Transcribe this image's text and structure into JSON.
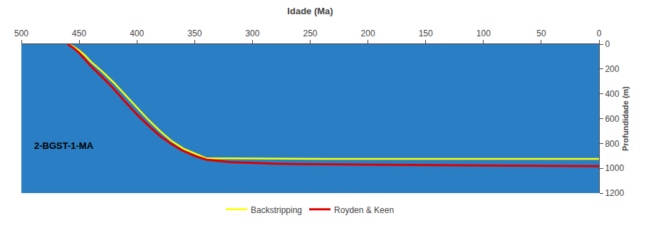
{
  "chart_data": {
    "type": "line",
    "xlabel": "Idade (Ma)",
    "ylabel": "Profundidade (m)",
    "xlim": [
      500,
      0
    ],
    "ylim": [
      1200,
      0
    ],
    "xticks": [
      500,
      450,
      400,
      350,
      300,
      250,
      200,
      150,
      100,
      50,
      0
    ],
    "yticks": [
      0,
      200,
      400,
      600,
      800,
      1000,
      1200
    ],
    "grid": false,
    "legend": "bottom",
    "series": [
      {
        "name": "Backstripping",
        "color": "#ffff00",
        "x": [
          460,
          455,
          450,
          445,
          440,
          430,
          420,
          410,
          400,
          390,
          380,
          370,
          360,
          350,
          345,
          342,
          340,
          320,
          300,
          280,
          260,
          240,
          220,
          200,
          150,
          100,
          50,
          0
        ],
        "values": [
          0,
          20,
          50,
          90,
          140,
          220,
          310,
          410,
          510,
          610,
          700,
          780,
          840,
          880,
          900,
          910,
          920,
          920,
          922,
          923,
          924,
          924,
          924,
          924,
          924,
          924,
          924,
          924
        ]
      },
      {
        "name": "Royden & Keen",
        "color": "#dd0000",
        "x": [
          460,
          455,
          450,
          445,
          440,
          430,
          420,
          410,
          400,
          390,
          380,
          370,
          360,
          350,
          340,
          320,
          300,
          280,
          260,
          240,
          220,
          200,
          150,
          100,
          50,
          0
        ],
        "values": [
          0,
          30,
          70,
          120,
          175,
          265,
          360,
          465,
          565,
          655,
          740,
          805,
          860,
          900,
          930,
          950,
          958,
          963,
          966,
          968,
          970,
          972,
          975,
          978,
          980,
          983
        ]
      }
    ],
    "annotations": [
      {
        "text": "2-BGST-1-MA",
        "x": 490,
        "y": 820
      }
    ]
  }
}
